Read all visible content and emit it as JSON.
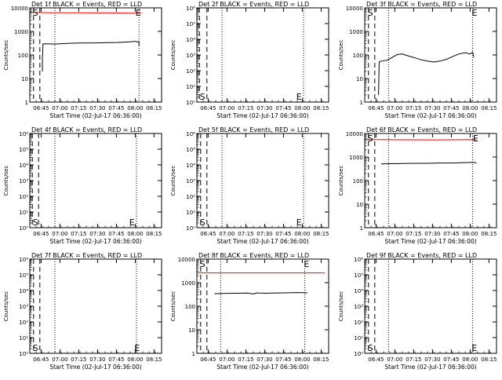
{
  "chart_data": [
    {
      "type": "line",
      "title": "Det 1f BLACK = Events, RED = LLD",
      "ylabel": "Counts/sec",
      "xlabel": "Start Time (02-Jul-17 06:36:00)",
      "yscale": "log",
      "ylim": [
        1,
        10000
      ],
      "ytick_labels": [
        "1",
        "10",
        "100",
        "1000",
        "10000"
      ],
      "xlim_min": [
        0,
        105
      ],
      "xtick_min": [
        9,
        24,
        39,
        54,
        69,
        84,
        99
      ],
      "xtick_labels": [
        "06:45",
        "07:00",
        "07:15",
        "07:30",
        "07:45",
        "08:00",
        "08:15"
      ],
      "dashed_min": [
        3,
        8
      ],
      "dotted_min": [
        20,
        87
      ],
      "markers": [
        {
          "text": "S",
          "x": 1,
          "at": "top"
        },
        {
          "text": "E",
          "x": 83,
          "at": "top"
        }
      ],
      "series": [
        {
          "color": "#000000",
          "x": [
            10,
            10,
            10.5,
            12,
            20,
            30,
            40,
            50,
            60,
            70,
            80,
            84,
            87,
            87
          ],
          "y": [
            20,
            55,
            290,
            300,
            290,
            310,
            320,
            320,
            330,
            340,
            360,
            380,
            350,
            240
          ]
        },
        {
          "color": "#ff0000",
          "x": [
            0,
            10,
            20,
            30,
            40,
            50,
            60,
            70,
            80,
            87,
            89
          ],
          "y": [
            6400,
            6300,
            6200,
            6150,
            6150,
            6100,
            6100,
            6050,
            6000,
            6000,
            5800
          ]
        }
      ]
    },
    {
      "type": "line",
      "title": "Det 2f BLACK = Events, RED = LLD",
      "ylabel": "Counts/sec",
      "xlabel": "Start Time (02-Jul-17 06:36:00)",
      "yscale": "log",
      "ylim": [
        1,
        1000000
      ],
      "ytick_labels": [
        "10⁰",
        "10¹",
        "10²",
        "10³",
        "10⁴",
        "10⁵",
        "10⁶"
      ],
      "xlim_min": [
        0,
        105
      ],
      "xtick_min": [
        9,
        24,
        39,
        54,
        69,
        84,
        99
      ],
      "xtick_labels": [
        "06:45",
        "07:00",
        "07:15",
        "07:30",
        "07:45",
        "08:00",
        "08:15"
      ],
      "dashed_min": [
        2,
        8
      ],
      "dotted_min": [
        20,
        85
      ],
      "markers": [
        {
          "text": "S",
          "x": 1,
          "at": "bottom"
        },
        {
          "text": "E",
          "x": 78,
          "at": "bottom"
        }
      ],
      "series": []
    },
    {
      "type": "line",
      "title": "Det 3f BLACK = Events, RED = LLD",
      "ylabel": "Counts/sec",
      "xlabel": "Start Time (02-Jul-17 06:36:00)",
      "yscale": "log",
      "ylim": [
        1,
        10000
      ],
      "ytick_labels": [
        "1",
        "10",
        "100",
        "1000",
        "10000"
      ],
      "xlim_min": [
        0,
        105
      ],
      "xtick_min": [
        9,
        24,
        39,
        54,
        69,
        84,
        99
      ],
      "xtick_labels": [
        "06:45",
        "07:00",
        "07:15",
        "07:30",
        "07:45",
        "08:00",
        "08:15"
      ],
      "dashed_min": [
        3,
        8
      ],
      "dotted_min": [
        19,
        86
      ],
      "markers": [
        {
          "text": "S",
          "x": 1,
          "at": "top"
        },
        {
          "text": "E",
          "x": 84,
          "at": "top"
        }
      ],
      "series": [
        {
          "color": "#000000",
          "x": [
            11,
            11.5,
            13,
            18,
            22,
            26,
            30,
            35,
            40,
            45,
            50,
            55,
            60,
            65,
            70,
            75,
            80,
            84,
            86,
            87
          ],
          "y": [
            2,
            50,
            55,
            60,
            80,
            105,
            110,
            90,
            75,
            62,
            55,
            50,
            55,
            65,
            85,
            110,
            125,
            110,
            130,
            80
          ]
        }
      ]
    },
    {
      "type": "line",
      "title": "Det 4f BLACK = Events, RED = LLD",
      "ylabel": "Counts/sec",
      "xlabel": "Start Time (02-Jul-17 06:36:00)",
      "yscale": "log",
      "ylim": [
        1,
        1000000
      ],
      "ytick_labels": [
        "10⁰",
        "10¹",
        "10²",
        "10³",
        "10⁴",
        "10⁵",
        "10⁶"
      ],
      "xlim_min": [
        0,
        105
      ],
      "xtick_min": [
        9,
        24,
        39,
        54,
        69,
        84,
        99
      ],
      "xtick_labels": [
        "06:45",
        "07:00",
        "07:15",
        "07:30",
        "07:45",
        "08:00",
        "08:15"
      ],
      "dashed_min": [
        2,
        7
      ],
      "dotted_min": [
        20,
        85
      ],
      "markers": [
        {
          "text": "S",
          "x": 1,
          "at": "bottom"
        },
        {
          "text": "E",
          "x": 78,
          "at": "bottom"
        }
      ],
      "series": []
    },
    {
      "type": "line",
      "title": "Det 5f BLACK = Events, RED = LLD",
      "ylabel": "Counts/sec",
      "xlabel": "Start Time (02-Jul-17 06:36:00)",
      "yscale": "log",
      "ylim": [
        1,
        1000000
      ],
      "ytick_labels": [
        "10⁰",
        "10¹",
        "10²",
        "10³",
        "10⁴",
        "10⁵",
        "10⁶"
      ],
      "xlim_min": [
        0,
        105
      ],
      "xtick_min": [
        9,
        24,
        39,
        54,
        69,
        84,
        99
      ],
      "xtick_labels": [
        "06:45",
        "07:00",
        "07:15",
        "07:30",
        "07:45",
        "08:00",
        "08:15"
      ],
      "dashed_min": [
        3,
        8
      ],
      "dotted_min": [
        20,
        85
      ],
      "markers": [
        {
          "text": "S",
          "x": 1,
          "at": "bottom"
        },
        {
          "text": "E",
          "x": 78,
          "at": "bottom"
        }
      ],
      "series": []
    },
    {
      "type": "line",
      "title": "Det 6f BLACK = Events, RED = LLD",
      "ylabel": "Counts/sec",
      "xlabel": "Start Time (02-Jul-17 06:36:00)",
      "yscale": "log",
      "ylim": [
        1,
        10000
      ],
      "ytick_labels": [
        "1",
        "10",
        "100",
        "1000",
        "10000"
      ],
      "xlim_min": [
        0,
        105
      ],
      "xtick_min": [
        9,
        24,
        39,
        54,
        69,
        84,
        99
      ],
      "xtick_labels": [
        "06:45",
        "07:00",
        "07:15",
        "07:30",
        "07:45",
        "08:00",
        "08:15"
      ],
      "dashed_min": [
        3,
        8
      ],
      "dotted_min": [
        19,
        86
      ],
      "markers": [
        {
          "text": "S",
          "x": 1,
          "at": "top"
        },
        {
          "text": "E",
          "x": 85,
          "at": "top"
        }
      ],
      "series": [
        {
          "color": "#000000",
          "x": [
            13,
            20,
            30,
            40,
            50,
            60,
            70,
            80,
            87,
            89
          ],
          "y": [
            510,
            520,
            530,
            540,
            540,
            560,
            560,
            580,
            600,
            560
          ]
        },
        {
          "color": "#ff0000",
          "x": [
            0,
            10,
            20,
            30,
            40,
            50,
            60,
            70,
            80,
            87,
            89
          ],
          "y": [
            5600,
            5500,
            5450,
            5400,
            5400,
            5350,
            5350,
            5400,
            5450,
            5500,
            5400
          ]
        }
      ]
    },
    {
      "type": "line",
      "title": "Det 7f BLACK = Events, RED = LLD",
      "ylabel": "Counts/sec",
      "xlabel": "Start Time (02-Jul-17 06:36:00)",
      "yscale": "log",
      "ylim": [
        1,
        1000000
      ],
      "ytick_labels": [
        "10⁰",
        "10¹",
        "10²",
        "10³",
        "10⁴",
        "10⁵",
        "10⁶"
      ],
      "xlim_min": [
        0,
        105
      ],
      "xtick_min": [
        9,
        24,
        39,
        54,
        69,
        84,
        99
      ],
      "xtick_labels": [
        "06:45",
        "07:00",
        "07:15",
        "07:30",
        "07:45",
        "08:00",
        "08:15"
      ],
      "dashed_min": [
        3,
        8
      ],
      "dotted_min": [
        20,
        85
      ],
      "markers": [
        {
          "text": "S",
          "x": 1,
          "at": "bottom"
        },
        {
          "text": "E",
          "x": 82,
          "at": "bottom"
        }
      ],
      "series": []
    },
    {
      "type": "line",
      "title": "Det 8f BLACK = Events, RED = LLD",
      "ylabel": "Counts/sec",
      "xlabel": "Start Time (02-Jul-17 06:36:00)",
      "yscale": "log",
      "ylim": [
        1,
        10000
      ],
      "ytick_labels": [
        "1",
        "10",
        "100",
        "1000",
        "10000"
      ],
      "xlim_min": [
        0,
        105
      ],
      "xtick_min": [
        9,
        24,
        39,
        54,
        69,
        84,
        99
      ],
      "xtick_labels": [
        "06:45",
        "07:00",
        "07:15",
        "07:30",
        "07:45",
        "08:00",
        "08:15"
      ],
      "dashed_min": [
        3,
        8
      ],
      "dotted_min": [
        19,
        86
      ],
      "markers": [
        {
          "text": "S",
          "x": 1,
          "at": "top"
        },
        {
          "text": "E",
          "x": 84,
          "at": "top"
        }
      ],
      "series": [
        {
          "color": "#000000",
          "x": [
            14,
            20,
            30,
            40,
            45,
            48,
            50,
            55,
            60,
            70,
            80,
            88
          ],
          "y": [
            340,
            350,
            355,
            360,
            330,
            370,
            360,
            355,
            360,
            370,
            380,
            370
          ]
        },
        {
          "color": "#ff0000",
          "x": [
            0,
            10,
            20,
            30,
            40,
            50,
            60,
            70,
            80,
            90,
            102
          ],
          "y": [
            2600,
            2600,
            2600,
            2600,
            2600,
            2600,
            2600,
            2600,
            2600,
            2600,
            2600
          ]
        }
      ]
    },
    {
      "type": "line",
      "title": "Det 9f BLACK = Events, RED = LLD",
      "ylabel": "Counts/sec",
      "xlabel": "Start Time (02-Jul-17 06:36:00)",
      "yscale": "log",
      "ylim": [
        1,
        1000000
      ],
      "ytick_labels": [
        "10⁰",
        "10¹",
        "10²",
        "10³",
        "10⁴",
        "10⁵",
        "10⁶"
      ],
      "xlim_min": [
        0,
        105
      ],
      "xtick_min": [
        9,
        24,
        39,
        54,
        69,
        84,
        99
      ],
      "xtick_labels": [
        "06:45",
        "07:00",
        "07:15",
        "07:30",
        "07:45",
        "08:00",
        "08:15"
      ],
      "dashed_min": [
        3,
        8
      ],
      "dotted_min": [
        19,
        86
      ],
      "markers": [
        {
          "text": "S",
          "x": 1,
          "at": "bottom"
        },
        {
          "text": "E",
          "x": 84,
          "at": "bottom"
        }
      ],
      "series": []
    }
  ]
}
